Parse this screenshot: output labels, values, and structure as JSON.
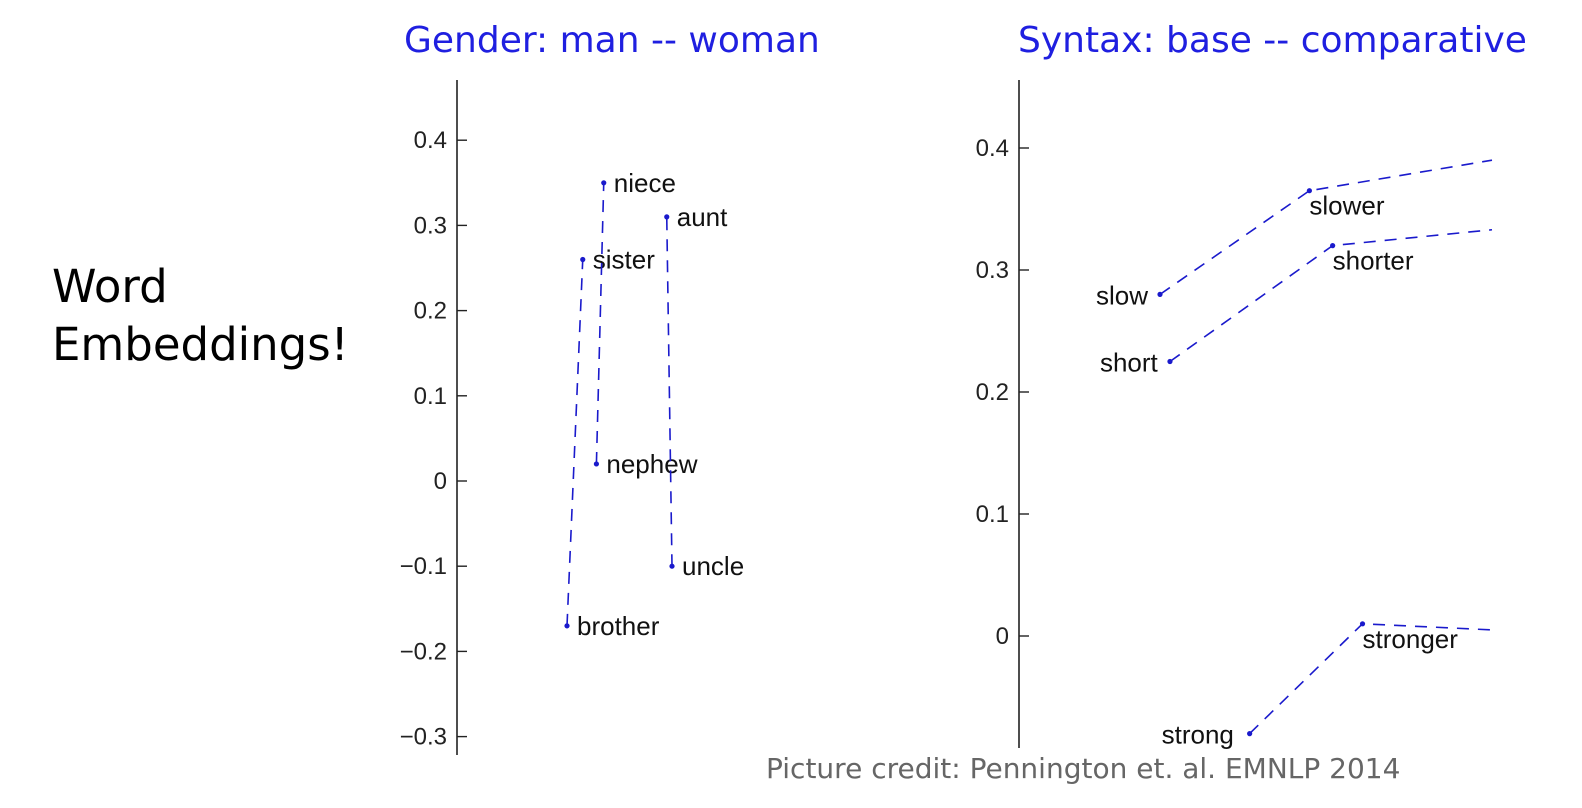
{
  "slide": {
    "label_line1": "Word",
    "label_line2": "Embeddings!",
    "credit": "Picture credit: Pennington et. al. EMNLP 2014"
  },
  "colors": {
    "title": "#1f1fe0",
    "series": "#1a1acc",
    "credit": "#666666"
  },
  "chart_data": [
    {
      "type": "line",
      "title": "Gender: man -- woman",
      "ylim": [
        -0.31,
        0.47
      ],
      "yticks": [
        -0.3,
        -0.2,
        -0.1,
        0,
        0.1,
        0.2,
        0.3,
        0.4
      ],
      "ytick_labels": [
        "−0.3",
        "−0.2",
        "−0.1",
        "0",
        "0.1",
        "0.2",
        "0.3",
        "0.4"
      ],
      "grid": false,
      "line_style": "dashed",
      "series": [
        {
          "points": [
            {
              "label": "brother",
              "x": 0.0,
              "y": -0.17
            },
            {
              "label": "sister",
              "x": 0.15,
              "y": 0.26
            }
          ]
        },
        {
          "points": [
            {
              "label": "nephew",
              "x": 0.28,
              "y": 0.02
            },
            {
              "label": "niece",
              "x": 0.35,
              "y": 0.35
            }
          ]
        },
        {
          "points": [
            {
              "label": "uncle",
              "x": 1.0,
              "y": -0.1
            },
            {
              "label": "aunt",
              "x": 0.95,
              "y": 0.31
            }
          ]
        }
      ]
    },
    {
      "type": "line",
      "title": "Syntax: base -- comparative",
      "ylim": [
        -0.09,
        0.46
      ],
      "yticks": [
        0,
        0.1,
        0.2,
        0.3,
        0.4
      ],
      "ytick_labels": [
        "0",
        "0.1",
        "0.2",
        "0.3",
        "0.4"
      ],
      "grid": false,
      "line_style": "dashed",
      "series": [
        {
          "points": [
            {
              "label": "slow",
              "x": 0.0,
              "y": 0.28
            },
            {
              "label": "slower",
              "x": 0.45,
              "y": 0.365
            },
            {
              "label": "",
              "x": 1.0,
              "y": 0.39
            }
          ]
        },
        {
          "points": [
            {
              "label": "short",
              "x": 0.03,
              "y": 0.225
            },
            {
              "label": "shorter",
              "x": 0.52,
              "y": 0.32
            },
            {
              "label": "",
              "x": 1.0,
              "y": 0.333
            }
          ]
        },
        {
          "points": [
            {
              "label": "strong",
              "x": 0.27,
              "y": -0.08
            },
            {
              "label": "stronger",
              "x": 0.61,
              "y": 0.01
            },
            {
              "label": "",
              "x": 1.0,
              "y": 0.005
            }
          ]
        }
      ]
    }
  ]
}
